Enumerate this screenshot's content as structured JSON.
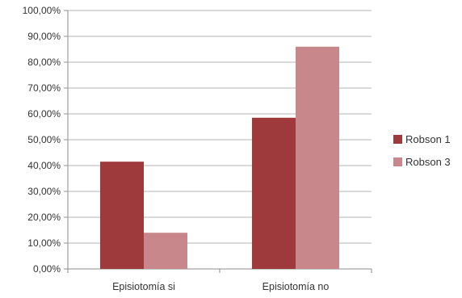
{
  "chart_data": {
    "type": "bar",
    "categories": [
      "Episiotomía si",
      "Episiotomía no"
    ],
    "series": [
      {
        "name": "Robson 1",
        "values": [
          41.5,
          58.5
        ],
        "color": "#9e3a3b"
      },
      {
        "name": "Robson 3",
        "values": [
          14.0,
          86.0
        ],
        "color": "#c8878a"
      }
    ],
    "ylim": [
      0,
      100
    ],
    "yticks": [
      "0,00%",
      "10,00%",
      "20,00%",
      "30,00%",
      "40,00%",
      "50,00%",
      "60,00%",
      "70,00%",
      "80,00%",
      "90,00%",
      "100,00%"
    ],
    "grid": true,
    "legend": "right"
  }
}
